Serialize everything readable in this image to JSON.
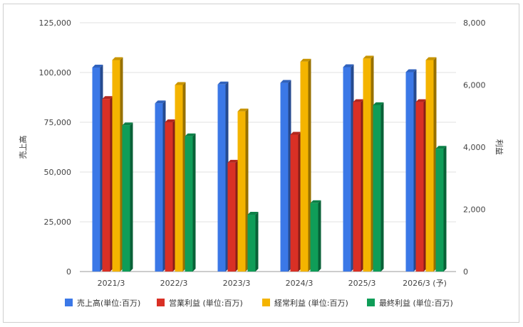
{
  "chart_data": {
    "type": "bar",
    "categories": [
      "2021/3",
      "2022/3",
      "2023/3",
      "2024/3",
      "2025/3",
      "2026/3 (予)"
    ],
    "series": [
      {
        "name": "売上高(単位:百万)",
        "axis": "left",
        "color": "#3b78e7",
        "values": [
          102500,
          84500,
          94000,
          94800,
          102700,
          100200
        ]
      },
      {
        "name": "営業利益 (単位:百万)",
        "axis": "right",
        "color": "#d93025",
        "values": [
          5550,
          4800,
          3500,
          4400,
          5450,
          5450
        ]
      },
      {
        "name": "経常利益 (単位:百万)",
        "axis": "right",
        "color": "#f4b400",
        "values": [
          6800,
          6000,
          5150,
          6750,
          6850,
          6800
        ]
      },
      {
        "name": "最終利益 (単位:百万)",
        "axis": "right",
        "color": "#0f9d58",
        "values": [
          4700,
          4350,
          1830,
          2200,
          5350,
          3950
        ]
      }
    ],
    "y_left": {
      "label": "売上高",
      "min": 0,
      "max": 125000,
      "ticks": [
        "0",
        "25,000",
        "50,000",
        "75,000",
        "100,000",
        "125,000"
      ]
    },
    "y_right": {
      "label": "利益",
      "min": 0,
      "max": 8000,
      "ticks": [
        "0",
        "2,000",
        "4,000",
        "6,000",
        "8,000"
      ]
    },
    "grid": true,
    "legend_position": "bottom"
  }
}
